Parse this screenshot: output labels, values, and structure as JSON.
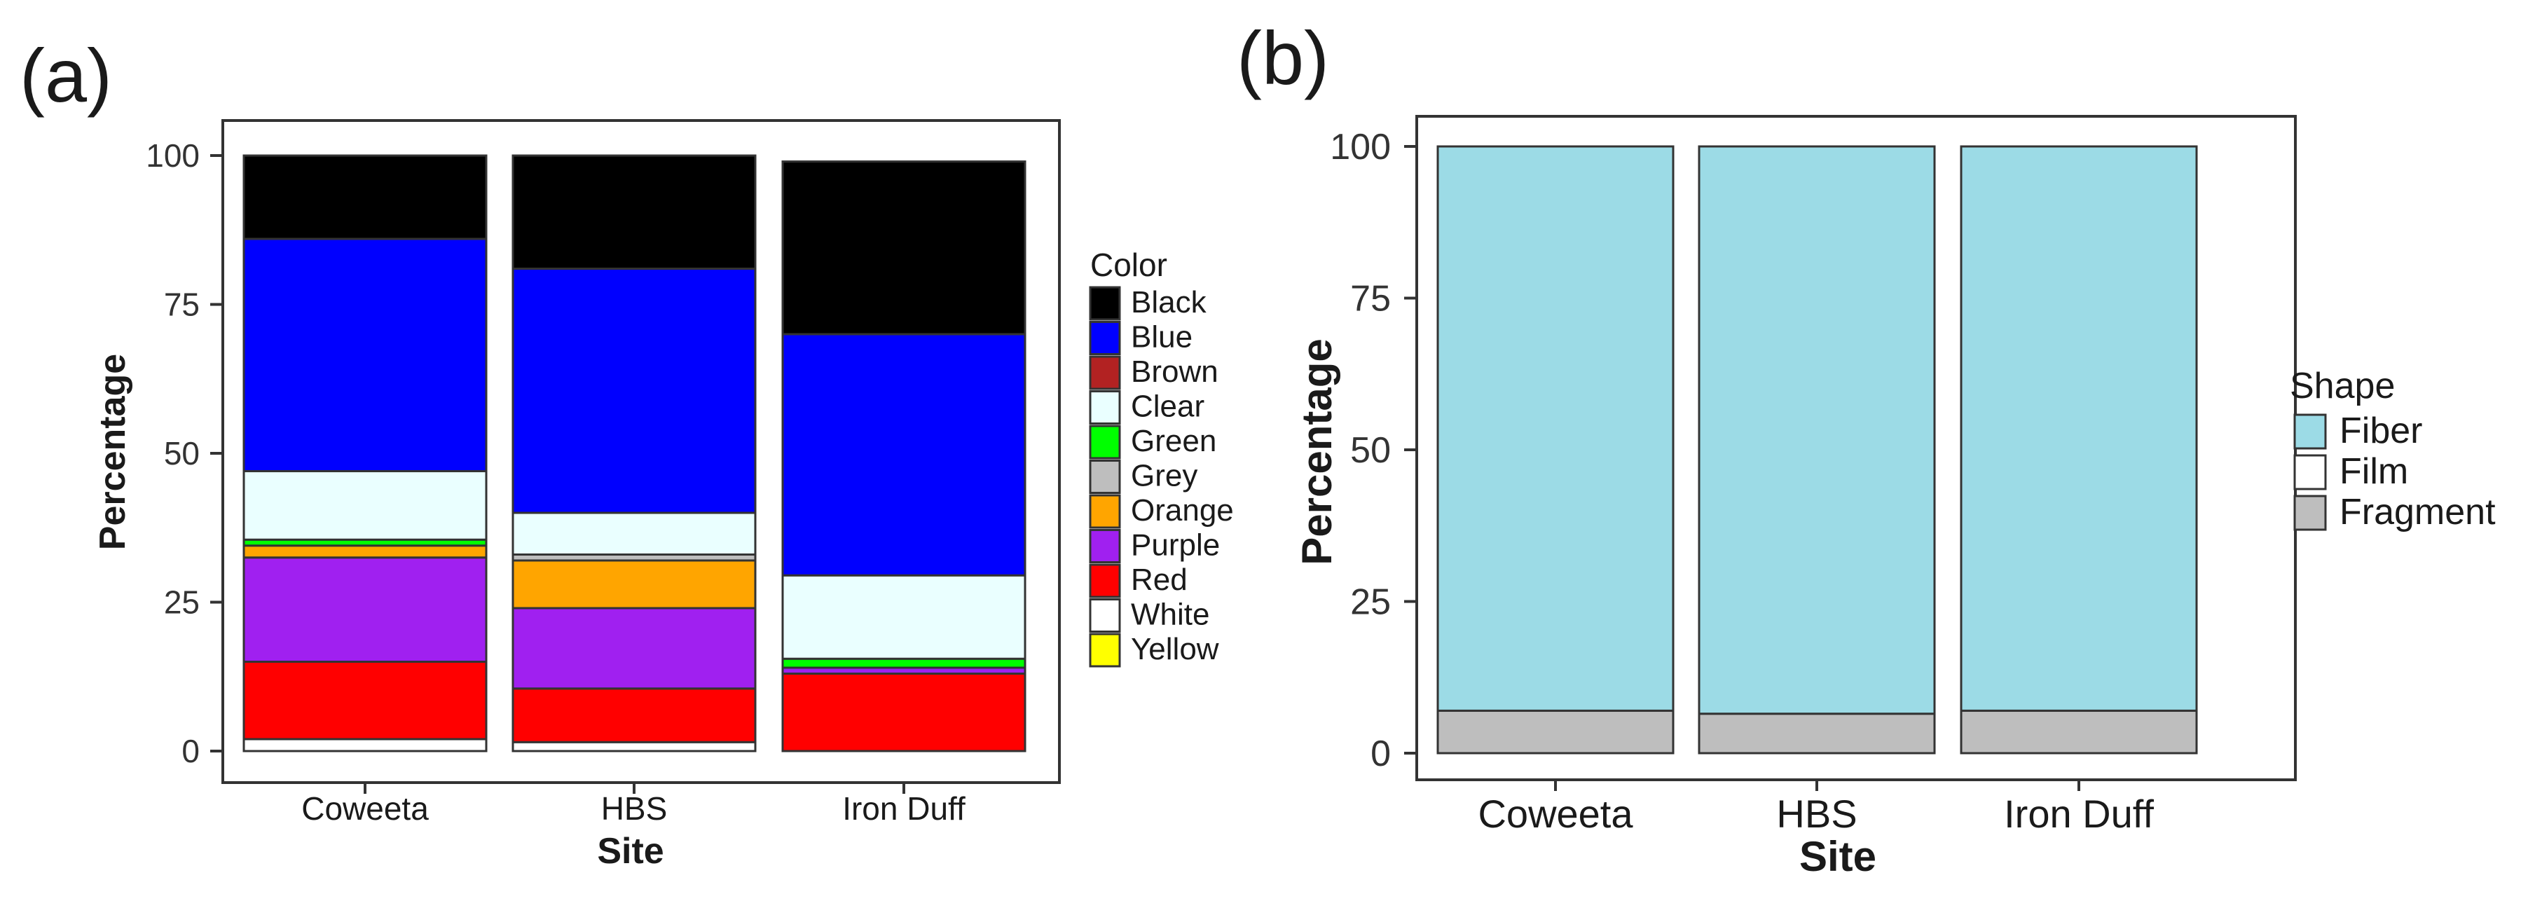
{
  "chart_data": [
    {
      "type": "bar",
      "stacked": true,
      "panel_label": "(a)",
      "xlabel": "Site",
      "ylabel": "Percentage",
      "ylim": [
        0,
        100
      ],
      "yticks": [
        0,
        25,
        50,
        75,
        100
      ],
      "categories": [
        "Coweeta",
        "HBS",
        "Iron Duff"
      ],
      "legend_title": "Color",
      "legend_position": "right",
      "grid": false,
      "series": [
        {
          "name": "Black",
          "color": "#000000",
          "values": [
            14,
            19,
            29
          ]
        },
        {
          "name": "Blue",
          "color": "#0000ff",
          "values": [
            39,
            41,
            40.5
          ]
        },
        {
          "name": "Brown",
          "color": "#b22222",
          "values": [
            0,
            0,
            0
          ]
        },
        {
          "name": "Clear",
          "color": "#eaffff",
          "values": [
            11.5,
            7,
            14
          ]
        },
        {
          "name": "Green",
          "color": "#00ff00",
          "values": [
            1,
            0,
            1.5
          ]
        },
        {
          "name": "Grey",
          "color": "#bebebe",
          "values": [
            0,
            1,
            0
          ]
        },
        {
          "name": "Orange",
          "color": "#ffa500",
          "values": [
            2,
            8,
            0
          ]
        },
        {
          "name": "Purple",
          "color": "#a020f0",
          "values": [
            17.5,
            13.5,
            1
          ]
        },
        {
          "name": "Red",
          "color": "#ff0000",
          "values": [
            13,
            9,
            13
          ]
        },
        {
          "name": "White",
          "color": "#ffffff",
          "values": [
            2,
            1.5,
            0
          ]
        },
        {
          "name": "Yellow",
          "color": "#ffff00",
          "values": [
            0,
            0,
            0
          ]
        }
      ]
    },
    {
      "type": "bar",
      "stacked": true,
      "panel_label": "(b)",
      "xlabel": "Site",
      "ylabel": "Percentage",
      "ylim": [
        0,
        100
      ],
      "yticks": [
        0,
        25,
        50,
        75,
        100
      ],
      "categories": [
        "Coweeta",
        "HBS",
        "Iron Duff"
      ],
      "legend_title": "Shape",
      "legend_position": "right",
      "grid": false,
      "series": [
        {
          "name": "Fiber",
          "color": "#9cdbe6",
          "values": [
            93,
            93.5,
            93
          ]
        },
        {
          "name": "Film",
          "color": "#ffffff",
          "values": [
            0,
            0,
            0
          ]
        },
        {
          "name": "Fragment",
          "color": "#bebebe",
          "values": [
            7,
            6.5,
            7
          ]
        }
      ]
    }
  ]
}
